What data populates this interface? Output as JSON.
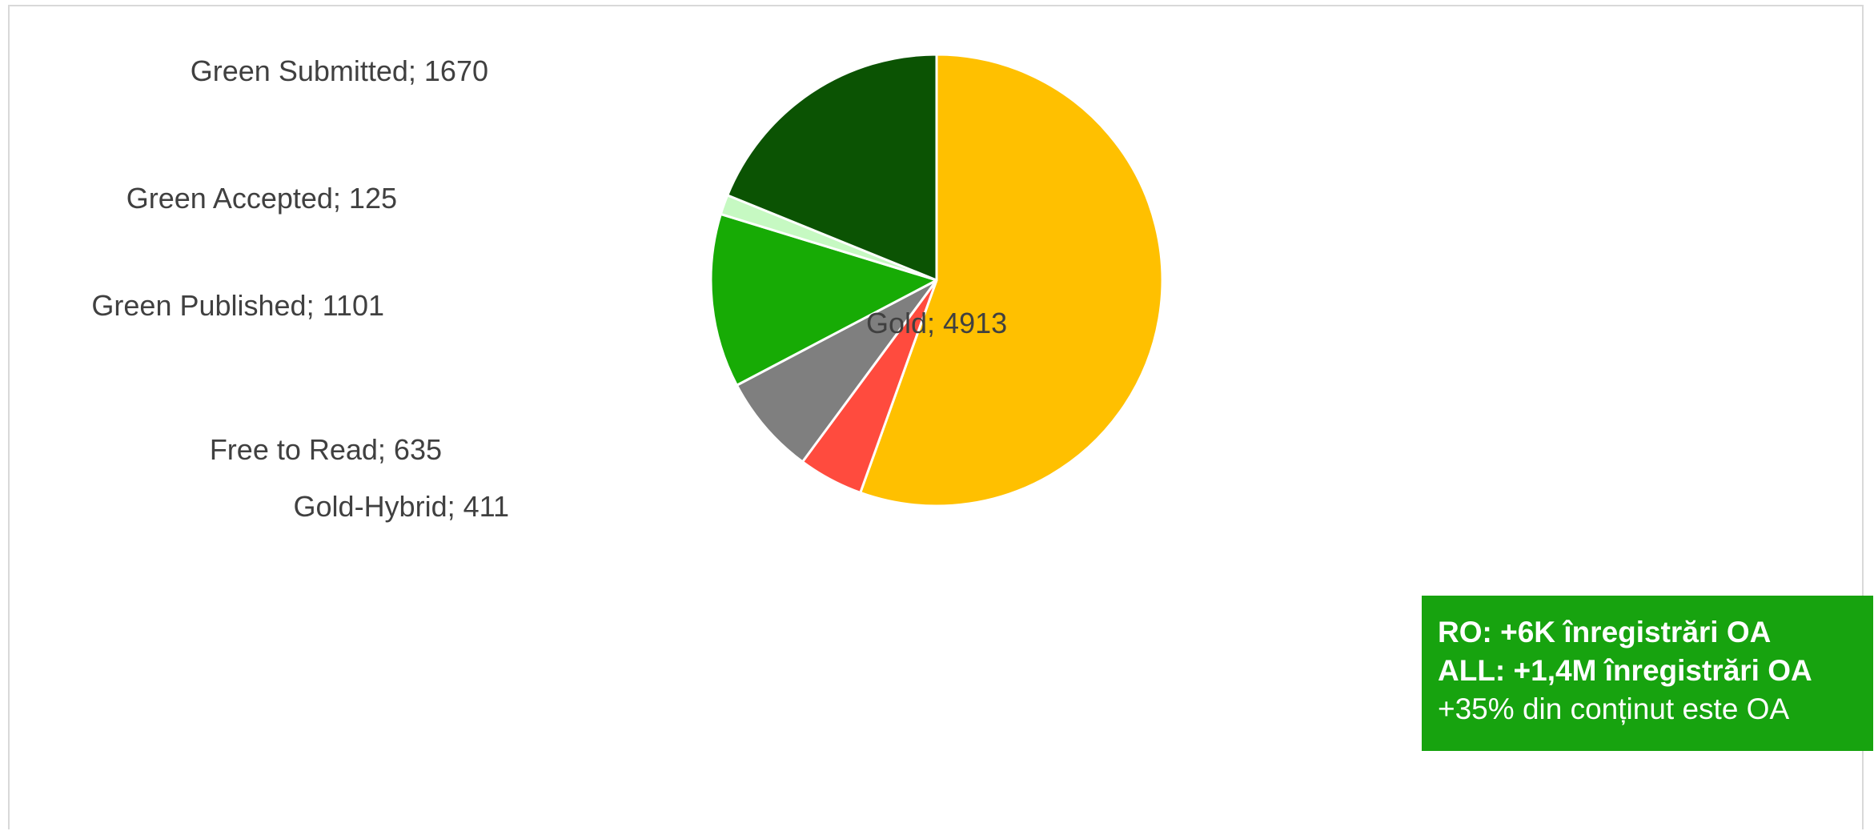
{
  "chart_data": {
    "type": "pie",
    "title": "",
    "slices": [
      {
        "label": "Gold; 4913",
        "name": "Gold",
        "value": 4913,
        "color": "#ffc000"
      },
      {
        "label": "Gold-Hybrid; 411",
        "name": "Gold-Hybrid",
        "value": 411,
        "color": "#ff4b3e"
      },
      {
        "label": "Free to Read; 635",
        "name": "Free to Read",
        "value": 635,
        "color": "#7f7f7f"
      },
      {
        "label": "Green Published; 1101",
        "name": "Green Published",
        "value": 1101,
        "color": "#17ab05"
      },
      {
        "label": "Green Accepted; 125",
        "name": "Green Accepted",
        "value": 125,
        "color": "#c6f9c2"
      },
      {
        "label": "Green Submitted; 1670",
        "name": "Green Submitted",
        "value": 1670,
        "color": "#0b5303"
      }
    ],
    "label_format": "category; value",
    "legend": "none",
    "start_angle": "12 o'clock",
    "direction": "clockwise"
  },
  "callout": {
    "line1": "RO: +6K înregistrări OA",
    "line2": "ALL: +1,4M înregistrări OA",
    "line3": "+35% din conținut este OA",
    "background": "#17a30f",
    "text_color": "#ffffff"
  }
}
